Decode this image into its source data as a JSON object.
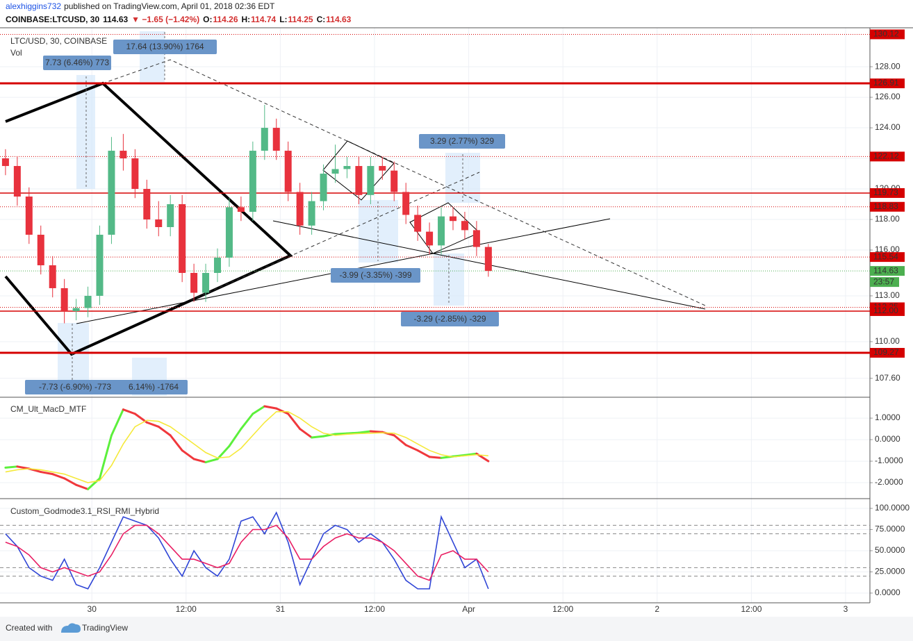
{
  "header": {
    "author": "alexhiggins732",
    "published": "published on TradingView.com, April 01, 2018 02:36 EDT",
    "symbol": "COINBASE:LTCUSD, 30",
    "last": "114.63",
    "change": "▼ −1.65 (−1.42%)",
    "o_label": "O:",
    "o": "114.26",
    "h_label": "H:",
    "h": "114.74",
    "l_label": "L:",
    "l": "114.25",
    "c_label": "C:",
    "c": "114.63"
  },
  "chart_data": [
    {
      "type": "candlestick",
      "legend": "LTC/USD, 30, COINBASE",
      "volume_label": "Vol",
      "x": [
        0,
        3,
        6,
        9,
        12,
        15,
        18,
        21,
        24,
        27,
        30,
        33,
        36,
        39,
        42,
        45,
        48,
        51,
        54,
        57,
        60,
        63,
        66,
        69,
        72,
        75,
        78,
        81,
        84,
        87,
        90,
        93,
        96,
        99,
        102,
        105,
        108,
        111,
        114,
        117,
        120,
        123
      ],
      "open": [
        122,
        121.5,
        119.5,
        117,
        115,
        113.5,
        112,
        112.2,
        113,
        117,
        122.5,
        122,
        120,
        118,
        117.5,
        119,
        114.5,
        113.2,
        114.5,
        115.5,
        118.8,
        118.5,
        122.5,
        124,
        122.5,
        119.8,
        117.6,
        119.2,
        121,
        121.3,
        121.5,
        119.6,
        121.5,
        121.2,
        119.8,
        118.3,
        117.2,
        116.3,
        118.2,
        117.9,
        117.3,
        116.2
      ],
      "high": [
        122.6,
        122.1,
        120.1,
        117.6,
        115.6,
        114.1,
        112.8,
        113.6,
        117.6,
        123.4,
        123.6,
        122.6,
        120.6,
        119.2,
        119.6,
        119.6,
        115.1,
        115.1,
        116.1,
        119.4,
        119.5,
        123.1,
        125.5,
        124.6,
        123.1,
        120.4,
        119.8,
        121.6,
        122.9,
        122.1,
        122.1,
        122.1,
        122.1,
        121.8,
        120.4,
        118.9,
        117.8,
        118.8,
        118.8,
        118.5,
        117.9,
        116.4
      ],
      "low": [
        120.9,
        118.9,
        116.4,
        114.4,
        112.9,
        111.2,
        111.4,
        111.6,
        112.4,
        116.4,
        121.2,
        119.4,
        117.4,
        116.9,
        116.9,
        113.9,
        112.6,
        112.6,
        113.9,
        114.9,
        117.9,
        117.9,
        121.9,
        121.9,
        119.2,
        117,
        117,
        118.6,
        120.4,
        120.7,
        119,
        119,
        120.6,
        119.2,
        117.7,
        116.6,
        115.7,
        115.7,
        117.3,
        116.7,
        115.6,
        114.25
      ],
      "close": [
        121.5,
        119.5,
        117,
        115,
        113.5,
        112,
        112.2,
        113,
        117,
        122.5,
        122,
        120,
        118,
        117.5,
        119,
        114.5,
        113.2,
        114.5,
        115.5,
        118.8,
        118.5,
        122.5,
        124,
        122.5,
        119.8,
        117.6,
        119.2,
        121,
        121.3,
        121.5,
        119.6,
        121.5,
        121.2,
        119.8,
        118.3,
        117.2,
        116.3,
        118.2,
        117.9,
        117.3,
        116.2,
        114.63
      ],
      "up_color": "#53b987",
      "down_color": "#e8323d",
      "xlim": [
        -1.4,
        220.2
      ],
      "xticks": [
        {
          "value": 22,
          "label": "30"
        },
        {
          "value": 46,
          "label": "12:00"
        },
        {
          "value": 70,
          "label": "31"
        },
        {
          "value": 94,
          "label": "12:00"
        },
        {
          "value": 118,
          "label": "Apr"
        },
        {
          "value": 142,
          "label": "12:00"
        },
        {
          "value": 166,
          "label": "2"
        },
        {
          "value": 190,
          "label": "12:00"
        },
        {
          "value": 214,
          "label": "3"
        }
      ],
      "ylim": [
        106.36,
        130.55
      ],
      "yticks": [
        {
          "value": 107.6,
          "label": "107.60"
        },
        {
          "value": 110,
          "label": "110.00"
        },
        {
          "value": 113,
          "label": "113.00"
        },
        {
          "value": 116,
          "label": "116.00"
        },
        {
          "value": 118,
          "label": "118.00"
        },
        {
          "value": 120,
          "label": "120.00"
        },
        {
          "value": 122,
          "label": "122.00"
        },
        {
          "value": 124,
          "label": "124.00"
        },
        {
          "value": 126,
          "label": "126.00"
        },
        {
          "value": 128,
          "label": "128.00"
        }
      ],
      "grid": true,
      "level_color": "#d50000",
      "levels": [
        {
          "value": 130.12,
          "style": "dotted"
        },
        {
          "value": 126.91,
          "style": "thick"
        },
        {
          "value": 122.12,
          "style": "dotted"
        },
        {
          "value": 119.73,
          "style": "solid"
        },
        {
          "value": 118.83,
          "style": "dotted"
        },
        {
          "value": 115.54,
          "style": "dotted"
        },
        {
          "value": 112.25,
          "style": "dotted"
        },
        {
          "value": 112,
          "label": "112.00",
          "style": "solid"
        },
        {
          "value": 109.27,
          "style": "thick"
        }
      ],
      "last_price": 114.63,
      "last_color": "#4caf50",
      "countdown": "23:57",
      "annotations": [
        "7.73 (6.46%) 773",
        "17.64 (13.90%) 1764",
        "3.29 (2.77%) 329",
        "-3.99 (-3.35%) -399",
        "-3.29 (-2.85%) -329",
        "-7.73 (-6.90%) -773",
        "6.14%) -1764"
      ]
    },
    {
      "type": "line",
      "title": "CM_Ult_MacD_MTF",
      "series": [
        {
          "color": "#5cf03c",
          "down_color": "#f0383c",
          "values": [
            -1.3,
            -1.25,
            -1.35,
            -1.5,
            -1.6,
            -1.8,
            -2.1,
            -2.3,
            -1.8,
            0.2,
            1.4,
            1.2,
            0.8,
            0.6,
            0.2,
            -0.5,
            -0.9,
            -1.05,
            -0.9,
            -0.3,
            0.5,
            1.2,
            1.55,
            1.45,
            1.2,
            0.5,
            0.1,
            0.16,
            0.26,
            0.29,
            0.32,
            0.39,
            0.35,
            0.2,
            -0.25,
            -0.5,
            -0.8,
            -0.85,
            -0.78,
            -0.72,
            -0.65,
            -1.0
          ]
        },
        {
          "color": "#f5e93a",
          "values": [
            -1.5,
            -1.4,
            -1.35,
            -1.4,
            -1.5,
            -1.6,
            -1.8,
            -2.0,
            -1.9,
            -1.2,
            -0.2,
            0.6,
            0.9,
            0.85,
            0.6,
            0.2,
            -0.2,
            -0.6,
            -0.85,
            -0.8,
            -0.4,
            0.2,
            0.8,
            1.3,
            1.3,
            1.0,
            0.6,
            0.3,
            0.2,
            0.25,
            0.28,
            0.3,
            0.32,
            0.3,
            0.1,
            -0.2,
            -0.5,
            -0.7,
            -0.8,
            -0.75,
            -0.7,
            -0.75
          ]
        }
      ],
      "ylim": [
        -2.74,
        1.97
      ],
      "yticks": [
        {
          "value": 1,
          "label": "1.0000"
        },
        {
          "value": 0,
          "label": "0.0000"
        },
        {
          "value": -1,
          "label": "-1.0000"
        },
        {
          "value": -2,
          "label": "-2.0000"
        }
      ]
    },
    {
      "type": "line",
      "title": "Custom_Godmode3.1_RSI_RMI_Hybrid",
      "series": [
        {
          "color": "#2f45d6",
          "values": [
            70,
            55,
            30,
            20,
            15,
            40,
            10,
            5,
            30,
            60,
            90,
            85,
            80,
            65,
            40,
            20,
            50,
            30,
            20,
            40,
            85,
            90,
            70,
            95,
            60,
            10,
            40,
            70,
            80,
            75,
            60,
            70,
            60,
            40,
            15,
            5,
            5,
            90,
            60,
            30,
            40,
            5
          ]
        },
        {
          "color": "#e91e63",
          "values": [
            60,
            55,
            45,
            30,
            25,
            30,
            25,
            20,
            25,
            45,
            70,
            80,
            80,
            70,
            55,
            40,
            40,
            35,
            30,
            35,
            60,
            75,
            75,
            80,
            65,
            40,
            40,
            55,
            65,
            70,
            65,
            65,
            60,
            50,
            35,
            20,
            15,
            45,
            50,
            40,
            40,
            25
          ]
        }
      ],
      "bands": [
        80,
        70,
        30,
        20
      ],
      "ylim": [
        -11.5,
        111.5
      ],
      "yticks": [
        {
          "value": 100,
          "label": "100.0000"
        },
        {
          "value": 75,
          "label": "75.0000"
        },
        {
          "value": 50,
          "label": "50.0000"
        },
        {
          "value": 25,
          "label": "25.0000"
        },
        {
          "value": 0,
          "label": "0.0000"
        }
      ]
    }
  ],
  "footer": {
    "created": "Created with",
    "brand": "TradingView"
  }
}
